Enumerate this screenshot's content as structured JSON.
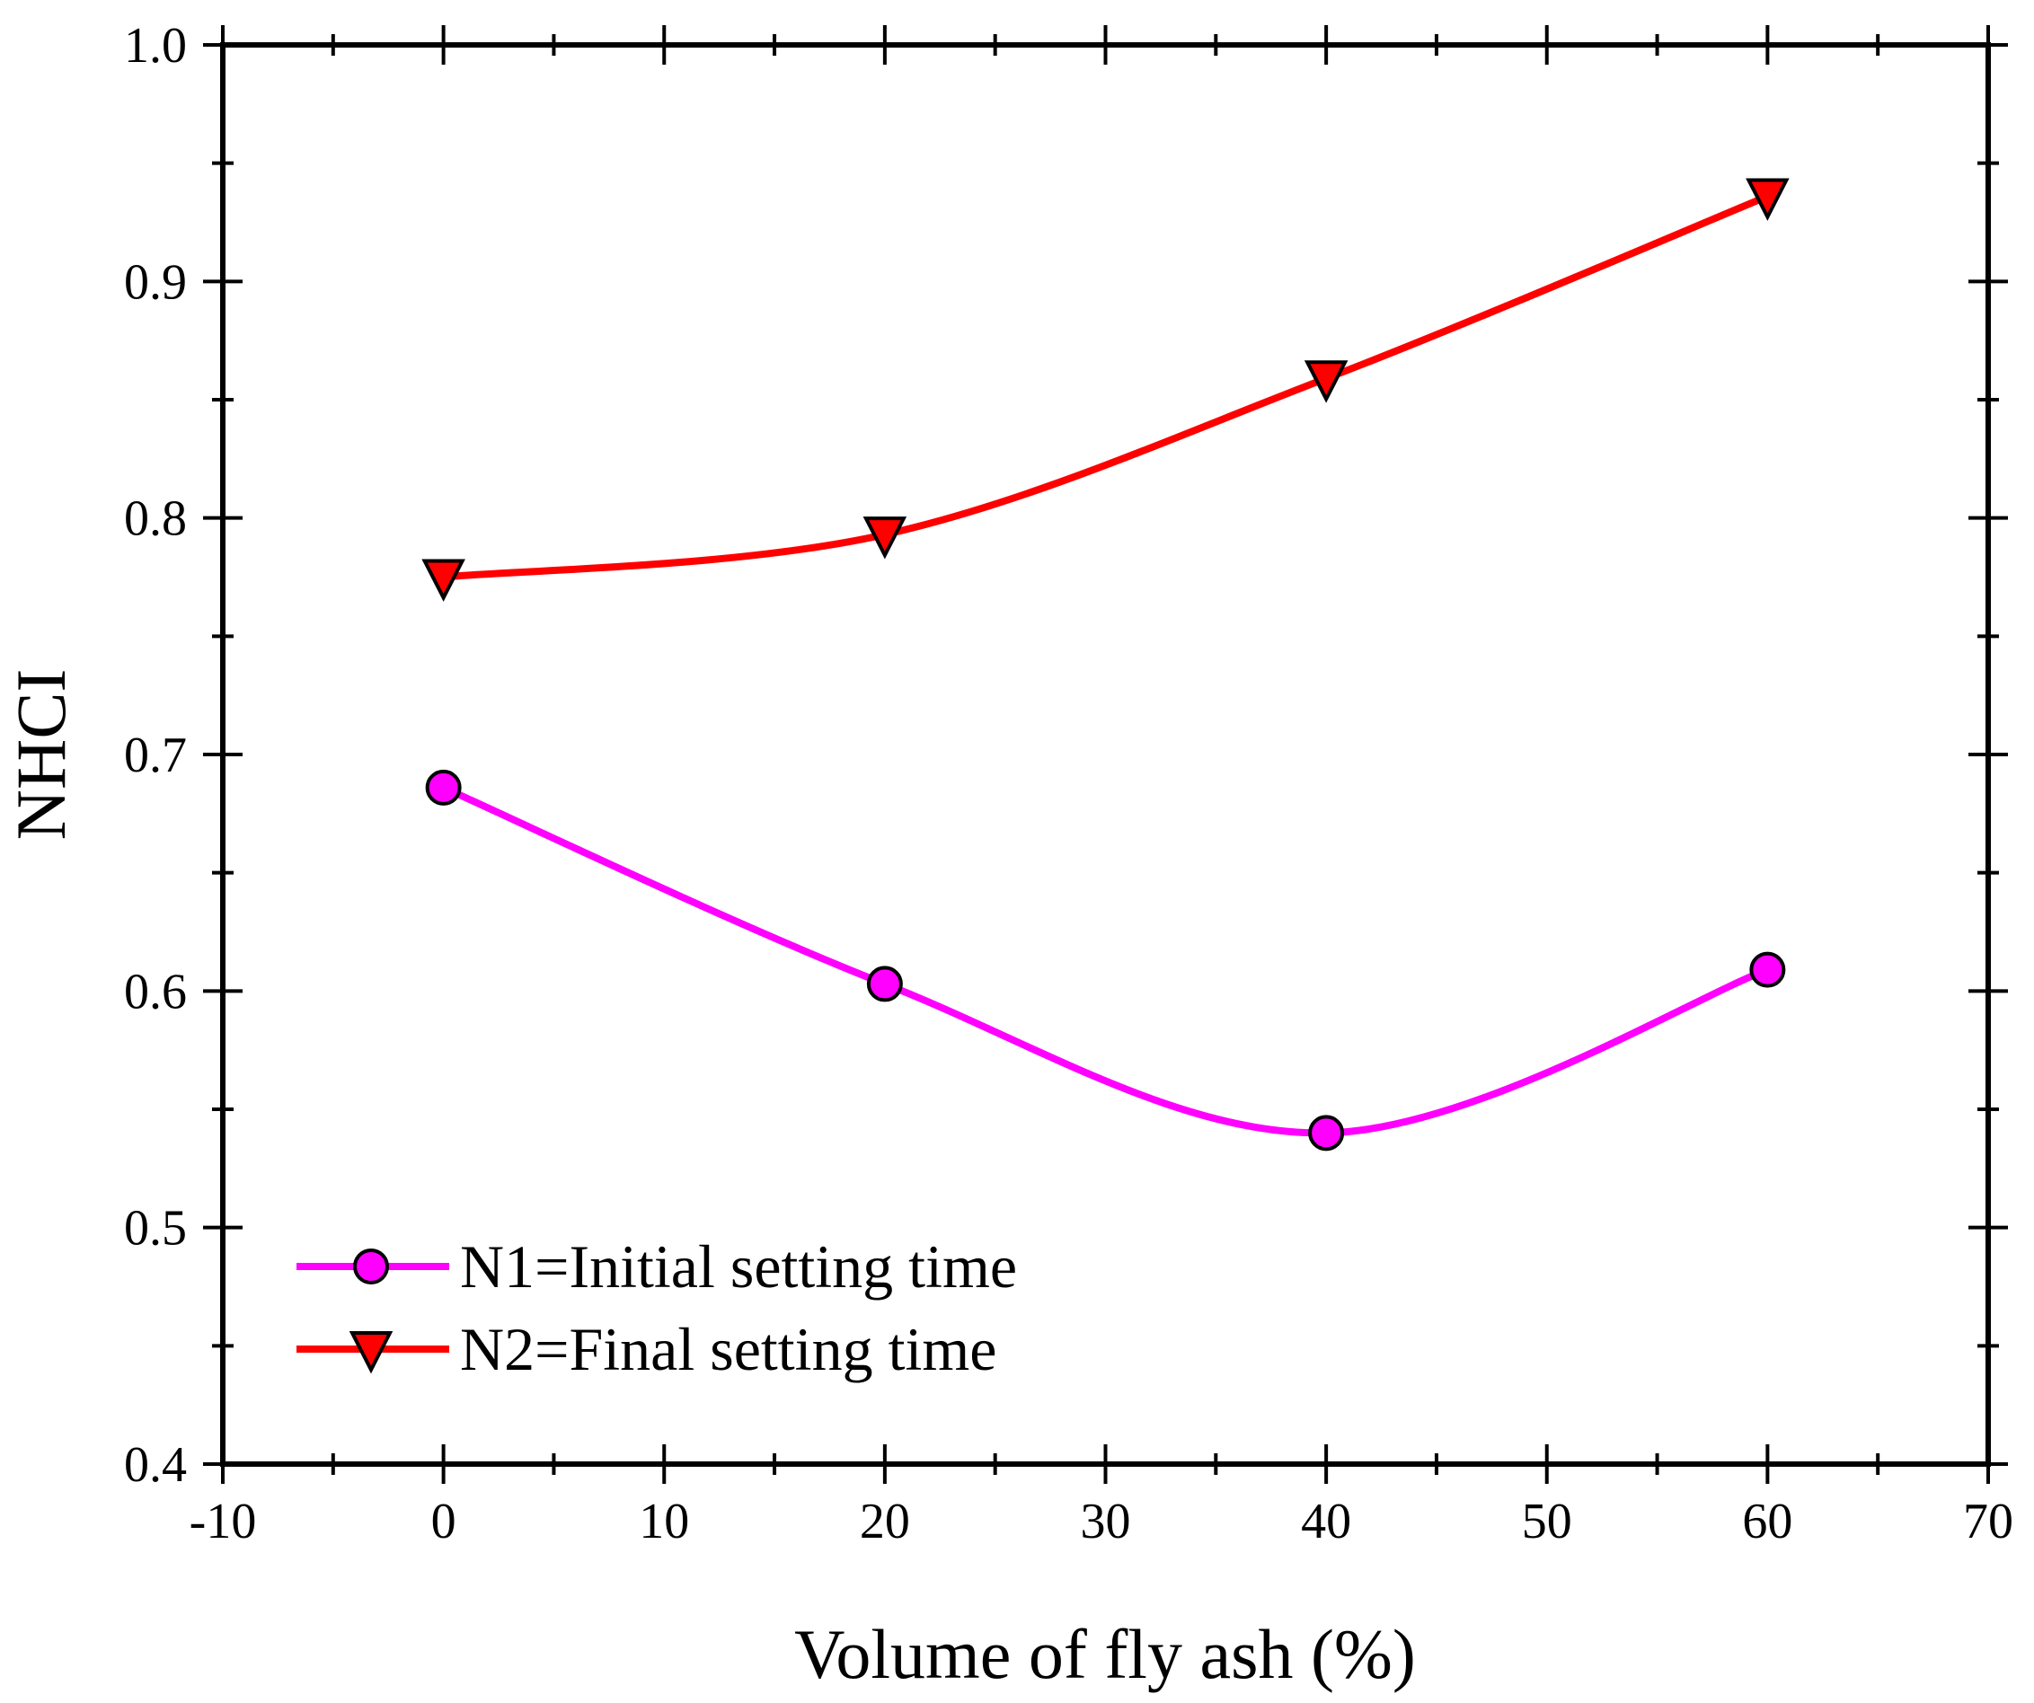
{
  "chart_data": {
    "type": "line",
    "title": "",
    "xlabel": "Volume of fly ash (%)",
    "ylabel": "NHCI",
    "xlim": [
      -10,
      70
    ],
    "ylim": [
      0.4,
      1.0
    ],
    "x_ticks": [
      "-10",
      "0",
      "10",
      "20",
      "30",
      "40",
      "50",
      "60",
      "70"
    ],
    "y_ticks": [
      "0.4",
      "0.5",
      "0.6",
      "0.7",
      "0.8",
      "0.9",
      "1.0"
    ],
    "x_tick_values": [
      -10,
      0,
      10,
      20,
      30,
      40,
      50,
      60,
      70
    ],
    "y_tick_values": [
      0.4,
      0.5,
      0.6,
      0.7,
      0.8,
      0.9,
      1.0
    ],
    "x_minor_step": 5,
    "y_minor_step": 0.05,
    "grid": false,
    "legend_position": "bottom-left",
    "series": [
      {
        "name": "N1=Initial setting time",
        "marker": "circle",
        "color": "#ff00ff",
        "x": [
          0,
          20,
          40,
          60
        ],
        "values": [
          0.686,
          0.603,
          0.54,
          0.609
        ]
      },
      {
        "name": "N2=Final setting time",
        "marker": "triangle-down",
        "color": "#ff0000",
        "x": [
          0,
          20,
          40,
          60
        ],
        "values": [
          0.775,
          0.793,
          0.859,
          0.936
        ]
      }
    ]
  }
}
